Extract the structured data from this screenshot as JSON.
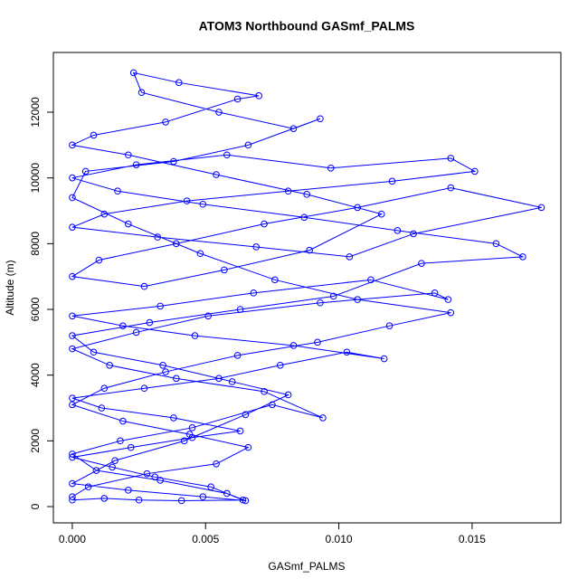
{
  "chart_data": {
    "type": "line",
    "title": "ATOM3 Northbound GASmf_PALMS",
    "xlabel": "GASmf_PALMS",
    "ylabel": "Altitude (m)",
    "color": "#0000ff",
    "markers": "circle",
    "xlim": [
      -0.00071,
      0.01833
    ],
    "ylim": [
      -495,
      13817
    ],
    "xticks": [
      {
        "value": 0,
        "label": "0.000"
      },
      {
        "value": 0.005,
        "label": "0.005"
      },
      {
        "value": 0.01,
        "label": "0.010"
      },
      {
        "value": 0.015,
        "label": "0.015"
      }
    ],
    "yticks": [
      0,
      2000,
      4000,
      6000,
      8000,
      10000,
      12000
    ],
    "x": [
      0,
      0.0012,
      0.0025,
      0.0041,
      0.0064,
      0.0052,
      0.0031,
      0.0015,
      0,
      0.0022,
      0.0045,
      0.0063,
      0.0038,
      0.0011,
      0,
      0.0027,
      0.0055,
      0.0078,
      0.0103,
      0.0117,
      0.0083,
      0.0046,
      0.0019,
      0,
      0.0033,
      0.0068,
      0.0112,
      0.0141,
      0.0136,
      0.0093,
      0.0051,
      0.0024,
      0,
      0.0014,
      0.0039,
      0.0072,
      0.0094,
      0.0075,
      0.0045,
      0.0018,
      0,
      0.0009,
      0.0033,
      0.0058,
      0.0065,
      0.0049,
      0.0021,
      0,
      0.0016,
      0.0042,
      0.0065,
      0.0081,
      0.006,
      0.0034,
      0.0008,
      0,
      0.0029,
      0.0063,
      0.0098,
      0.0131,
      0.0169,
      0.0159,
      0.0122,
      0.0087,
      0.0049,
      0.0017,
      0,
      0.0024,
      0.0058,
      0.0097,
      0.0142,
      0.0151,
      0.012,
      0.0081,
      0.0043,
      0.0012,
      0,
      0.0032,
      0.0069,
      0.0104,
      0.0128,
      0.0176,
      0.0142,
      0.0107,
      0.0072,
      0.0039,
      0.001,
      0,
      0.0027,
      0.0057,
      0.0089,
      0.0116,
      0.0088,
      0.0054,
      0.0021,
      0,
      0.0008,
      0.0035,
      0.0062,
      0.007,
      0.004,
      0.0023,
      0.0026,
      0.0055,
      0.0083,
      0.0093,
      0.0066,
      0.0038,
      0.0005,
      0,
      0.0021,
      0.0048,
      0.0076,
      0.0107,
      0.0142,
      0.0119,
      0.0092,
      0.0062,
      0.0035,
      0.0012,
      0,
      0.0019,
      0.0044,
      0.0066,
      0.0054,
      0.0028,
      0.0006,
      0
    ],
    "values": [
      200,
      250,
      200,
      180,
      200,
      600,
      900,
      1200,
      1500,
      1800,
      2100,
      2300,
      2700,
      3000,
      3300,
      3600,
      3900,
      4300,
      4700,
      4500,
      4900,
      5200,
      5500,
      5800,
      6100,
      6500,
      6900,
      6300,
      6500,
      6200,
      5800,
      5300,
      4800,
      4300,
      3900,
      3500,
      2700,
      3100,
      2400,
      2000,
      1600,
      1100,
      800,
      400,
      180,
      300,
      500,
      700,
      1400,
      2000,
      2800,
      3400,
      3800,
      4300,
      4700,
      5200,
      5600,
      6000,
      6400,
      7400,
      7600,
      8000,
      8400,
      8800,
      9200,
      9600,
      10000,
      10400,
      10700,
      10300,
      10600,
      10200,
      9900,
      9600,
      9300,
      8900,
      8500,
      8200,
      7900,
      7600,
      8300,
      9100,
      9700,
      9100,
      8600,
      8000,
      7500,
      7000,
      6700,
      7200,
      7800,
      8900,
      9500,
      10100,
      10700,
      11000,
      11300,
      11700,
      12400,
      12500,
      12900,
      13200,
      12600,
      12000,
      11500,
      11800,
      11000,
      10500,
      10200,
      9400,
      8600,
      7700,
      6900,
      6300,
      5900,
      5500,
      5000,
      4600,
      4100,
      3600,
      3100,
      2600,
      2200,
      1800,
      1300,
      1000,
      600,
      300
    ]
  }
}
